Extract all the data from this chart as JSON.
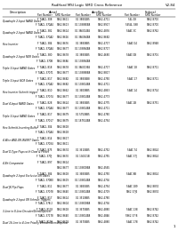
{
  "title": "RadHard MSI Logic SMD Cross Reference",
  "page_num": "V2.84",
  "bg_color": "#ffffff",
  "text_color": "#000000",
  "col_group_labels": [
    "Description",
    "Atmel",
    "Aeroflex",
    "Federal"
  ],
  "sub_headers": [
    "Part Number",
    "SMD Number",
    "Part Number",
    "SMD Number",
    "Part Number",
    "SMD Number"
  ],
  "rows": [
    {
      "desc": "Quadruple 2-Input NAND Gates",
      "data": [
        [
          "F 74ACL 308",
          "5962-8611",
          "01 38802B5",
          "5962-4711",
          "54L 08",
          "5962-8700"
        ],
        [
          "F 74ACL 370A4",
          "5962-8613",
          "01 138880B8",
          "5962-8917",
          "5454L 088",
          "5962-8700"
        ]
      ]
    },
    {
      "desc": "Quadruple 2-Input NAND Gates",
      "data": [
        [
          "F 74ACL 382",
          "5962-8614",
          "01 386004B5",
          "5962-4876",
          "54AC 3C",
          "5962-8762"
        ],
        [
          "F 74ACL 370A2",
          "5962-8616",
          "01 386084B8",
          "5962-8682",
          "",
          ""
        ]
      ]
    },
    {
      "desc": "Hex Inverter",
      "data": [
        [
          "F 74ACL 384",
          "5962-8676",
          "01 38808B5",
          "5962-4717",
          "54AC 04",
          "5962-8948"
        ],
        [
          "F 74ACL 370A4",
          "5962-8677",
          "01 138884B8",
          "5962-8717",
          "",
          ""
        ]
      ]
    },
    {
      "desc": "Quadruple 2-Input NOR Gates",
      "data": [
        [
          "F 74ACL 380",
          "5962-8678",
          "01 38804B5",
          "5962-4680",
          "54AC 0B",
          "5962-8701"
        ],
        [
          "F 74ACL 370B",
          "5962-8686",
          "01 138884B8",
          "",
          "",
          ""
        ]
      ]
    },
    {
      "desc": "Triple 3-Input NAND Gates",
      "data": [
        [
          "F 74ACL 818",
          "5962-8678",
          "01 386003B5",
          "5962-4717",
          "54AC 18",
          "5962-8711"
        ],
        [
          "F 74ACL 37071",
          "5962-8677",
          "01 138888B8",
          "5962-8817",
          "",
          ""
        ]
      ]
    },
    {
      "desc": "Triple 3-Input NOR Gates",
      "data": [
        [
          "F 74ACL 817",
          "5962-8682",
          "01 38804B8",
          "5962-4750",
          "54AC 17",
          "5962-8711"
        ],
        [
          "F 74ACL 370A2",
          "5962-8682",
          "01 138804B8",
          "5962-4711",
          "",
          ""
        ]
      ]
    },
    {
      "desc": "Hex Inverter Schmitt trigger",
      "data": [
        [
          "F 74ACL 810",
          "5962-8662",
          "01 36008B5",
          "5962-4863",
          "54AC 14",
          "5962-8714"
        ],
        [
          "F 74ACL 37074",
          "5962-8677",
          "01 138804B8",
          "5962-4773",
          "",
          ""
        ]
      ]
    },
    {
      "desc": "Dual 4-Input NAND Gates",
      "data": [
        [
          "F 74ACL 828",
          "5962-8624",
          "01 38804B5",
          "5962-4775",
          "54AC 2B",
          "5962-8751"
        ],
        [
          "F 74ACL 370A4",
          "5962-8677",
          "01 138804B8",
          "5962-4711",
          "",
          ""
        ]
      ]
    },
    {
      "desc": "Triple 3-Input NAND Gates",
      "data": [
        [
          "F 74ACL 817",
          "5962-8679",
          "01 57508B5",
          "5962-4780",
          "",
          ""
        ],
        [
          "F 74ACL 37017",
          "5962-8679",
          "01 187504B8",
          "5962-4754",
          "",
          ""
        ]
      ]
    },
    {
      "desc": "Hex Schmitt-Inverting Buffer",
      "data": [
        [
          "F 74ACL 304",
          "5962-8618",
          "",
          "",
          "",
          ""
        ],
        [
          "F 74ACL 370A4",
          "5962-8618",
          "",
          "",
          "",
          ""
        ]
      ]
    },
    {
      "desc": "4-Wire AND-OR-INVERT Gates",
      "data": [
        [
          "F 74ACL 814",
          "5962-8617",
          "",
          "",
          "",
          ""
        ],
        [
          "F 74ACL 37084",
          "5962-8611",
          "",
          "",
          "",
          ""
        ]
      ]
    },
    {
      "desc": "Dual D-Type Flops with Clear & Preset",
      "data": [
        [
          "F 74ACL 875",
          "5962-8674",
          "01 36104B5",
          "5962-4752",
          "54AC 74",
          "5962-8824"
        ],
        [
          "F 74ACL 370J",
          "5962-8670",
          "01 136101B",
          "5962-4755",
          "54AC 37J",
          "5962-8824"
        ]
      ]
    },
    {
      "desc": "4-Bit Comparator",
      "data": [
        [
          "F 74ACL 897",
          "5962-8614",
          "",
          "",
          "",
          ""
        ],
        [
          "",
          "5962-8677",
          "01 138808B8",
          "5962-4565",
          "",
          ""
        ]
      ]
    },
    {
      "desc": "Quadruple 2-Input Exclusive-OR Gates",
      "data": [
        [
          "F 74ACL 384",
          "5962-8618",
          "01 36804B5",
          "5962-4750",
          "54AC 8B",
          "5962-8814"
        ],
        [
          "F 74ACL 370B0",
          "5962-8619",
          "01 138804B8",
          "5962-4736",
          "",
          ""
        ]
      ]
    },
    {
      "desc": "Dual JK Flip-Flops",
      "data": [
        [
          "F 74ACL 811",
          "5962-8677",
          "01 36805B5",
          "5962-4754",
          "54AC 189",
          "5962-8874"
        ],
        [
          "F 74ACL 37078",
          "5962-8640",
          "01 138804B8",
          "5962-4719",
          "5962-37J4",
          "5962-8874"
        ]
      ]
    },
    {
      "desc": "Quadruple 2-Input OR Schmitt Triggers",
      "data": [
        [
          "F 74ACL 817",
          "5962-8614",
          "01 35108B5",
          "5962-4780",
          "",
          ""
        ],
        [
          "F 74ACL 37B 2",
          "5962-8604",
          "01 138808B8",
          "5962-4736",
          "",
          ""
        ]
      ]
    },
    {
      "desc": "3-Line to 8-Line Decoder/Demultiplexer",
      "data": [
        [
          "F 74ACL 8138",
          "5962-8618",
          "01 36704B5",
          "5962-4880",
          "54AC 138",
          "5962-8742"
        ],
        [
          "F 74ACL 37178",
          "5962-8640",
          "01 138804B8",
          "5962-4846",
          "5962-37 B",
          "5962-8742"
        ]
      ]
    },
    {
      "desc": "Dual 16-Line to 4-Line Priority Encoder/Demultiplexer",
      "data": [
        [
          "F 74ACL 8178",
          "5962-8618",
          "01 36704B5",
          "5962-4880",
          "54AC 178",
          "5962-8742"
        ],
        [
          "",
          "",
          "",
          "",
          "",
          ""
        ]
      ]
    }
  ],
  "footer_page": "1"
}
